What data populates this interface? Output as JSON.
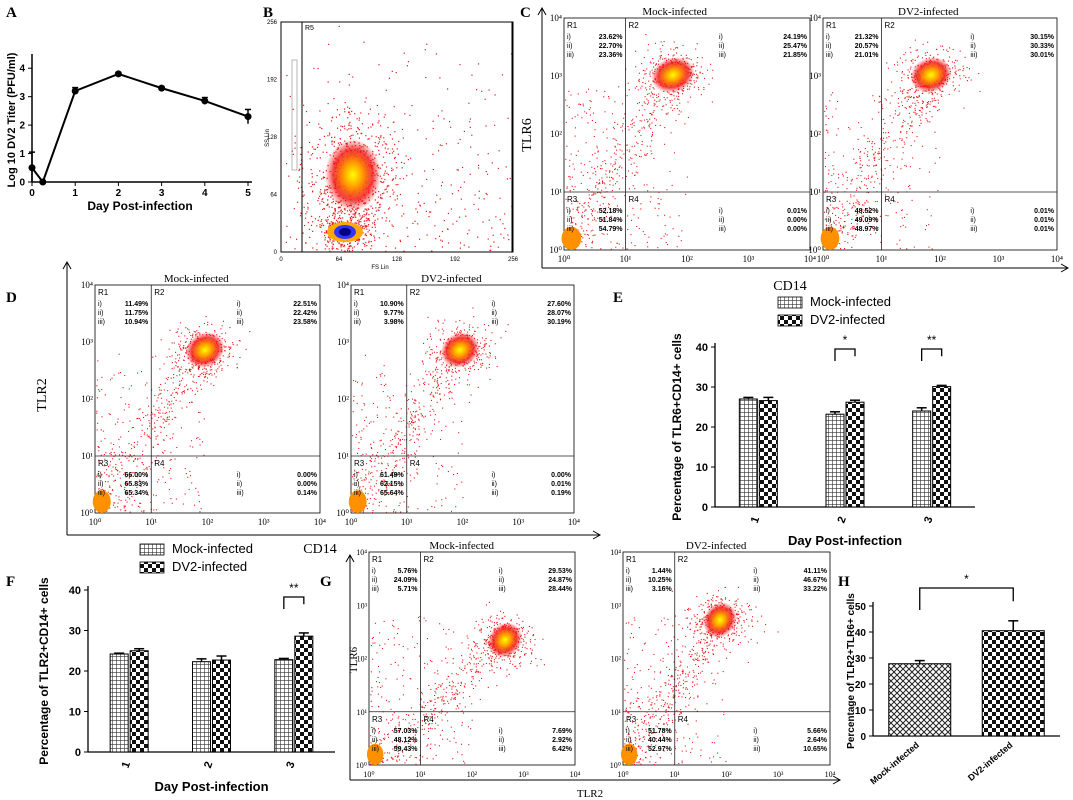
{
  "chart_data": [
    {
      "panel": "A",
      "type": "line",
      "xlabel": "Day Post-infection",
      "ylabel": "Log 10 DV2 Titer (PFU/ml)",
      "x": [
        0,
        0.25,
        1,
        2,
        3,
        4,
        5
      ],
      "y": [
        0.5,
        0.0,
        3.2,
        3.8,
        3.3,
        2.85,
        2.3
      ],
      "err": [
        0.55,
        0.05,
        0.12,
        0.05,
        0.05,
        0.12,
        0.25
      ],
      "xticks": [
        "0",
        "1",
        "2",
        "3",
        "4",
        "5"
      ],
      "yticks": [
        "0",
        "1",
        "2",
        "3",
        "4"
      ],
      "xlim": [
        0,
        5
      ],
      "ylim": [
        0,
        4.5
      ]
    },
    {
      "panel": "B",
      "type": "scatter",
      "xlabel": "FS Lin",
      "ylabel": "SS Lin",
      "gate": "R5",
      "xticks": [
        "0",
        "64",
        "128",
        "192",
        "256"
      ],
      "yticks": [
        "0",
        "64",
        "128",
        "192",
        "256"
      ]
    },
    {
      "panel": "C",
      "type": "scatter",
      "xlabel": "CD14",
      "ylabel": "TLR6",
      "ticks": [
        "10⁰",
        "10¹",
        "10²",
        "10³",
        "10⁴"
      ],
      "plots": [
        {
          "title": "Mock-infected",
          "quadrants": {
            "R1": [
              "23.62%",
              "22.70%",
              "23.36%"
            ],
            "R2": [
              "24.19%",
              "25.47%",
              "21.85%"
            ],
            "R3": [
              "52.18%",
              "51.84%",
              "54.79%"
            ],
            "R4": [
              "0.01%",
              "0.00%",
              "0.00%"
            ]
          }
        },
        {
          "title": "DV2-infected",
          "quadrants": {
            "R1": [
              "21.32%",
              "20.57%",
              "21.01%"
            ],
            "R2": [
              "30.15%",
              "30.33%",
              "30.01%"
            ],
            "R3": [
              "48.52%",
              "49.09%",
              "48.97%"
            ],
            "R4": [
              "0.01%",
              "0.01%",
              "0.01%"
            ]
          }
        }
      ]
    },
    {
      "panel": "D",
      "type": "scatter",
      "xlabel": "CD14",
      "ylabel": "TLR2",
      "ticks": [
        "10⁰",
        "10¹",
        "10²",
        "10³",
        "10⁴"
      ],
      "plots": [
        {
          "title": "Mock-infected",
          "quadrants": {
            "R1": [
              "11.49%",
              "11.75%",
              "10.94%"
            ],
            "R2": [
              "22.51%",
              "22.42%",
              "23.58%"
            ],
            "R3": [
              "66.00%",
              "65.83%",
              "65.34%"
            ],
            "R4": [
              "0.00%",
              "0.00%",
              "0.14%"
            ]
          }
        },
        {
          "title": "DV2-infected",
          "quadrants": {
            "R1": [
              "10.90%",
              "9.77%",
              "3.98%"
            ],
            "R2": [
              "27.60%",
              "28.07%",
              "30.19%"
            ],
            "R3": [
              "61.49%",
              "62.15%",
              "65.64%"
            ],
            "R4": [
              "0.00%",
              "0.01%",
              "0.19%"
            ]
          }
        }
      ]
    },
    {
      "panel": "E",
      "type": "bar",
      "categories": [
        "1",
        "2",
        "3"
      ],
      "series": [
        {
          "name": "Mock-infected",
          "values": [
            27.0,
            23.2,
            24.0
          ],
          "err": [
            0.4,
            0.6,
            0.8
          ]
        },
        {
          "name": "DV2-infected",
          "values": [
            26.6,
            26.2,
            30.1
          ],
          "err": [
            0.8,
            0.5,
            0.3
          ]
        }
      ],
      "xlabel": "Day Post-infection",
      "ylabel": "Percentage of TLR6+CD14+ cells",
      "ylim": [
        0,
        40
      ],
      "yticks": [
        "0",
        "10",
        "20",
        "30",
        "40"
      ],
      "significance": [
        {
          "category": "2",
          "label": "*"
        },
        {
          "category": "3",
          "label": "**"
        }
      ]
    },
    {
      "panel": "F",
      "type": "bar",
      "categories": [
        "1",
        "2",
        "3"
      ],
      "series": [
        {
          "name": "Mock-infected",
          "values": [
            24.2,
            22.3,
            22.8
          ],
          "err": [
            0.2,
            0.7,
            0.3
          ]
        },
        {
          "name": "DV2-infected",
          "values": [
            25.0,
            22.7,
            28.6
          ],
          "err": [
            0.5,
            1.0,
            0.8
          ]
        }
      ],
      "xlabel": "Day Post-infection",
      "ylabel": "Percentage of TLR2+CD14+ cells",
      "ylim": [
        0,
        40
      ],
      "yticks": [
        "0",
        "10",
        "20",
        "30",
        "40"
      ],
      "significance": [
        {
          "category": "3",
          "label": "**"
        }
      ]
    },
    {
      "panel": "G",
      "type": "scatter",
      "xlabel": "TLR2",
      "ylabel": "TLR6",
      "ticks": [
        "10⁰",
        "10¹",
        "10²",
        "10³",
        "10⁴"
      ],
      "plots": [
        {
          "title": "Mock-infected",
          "quadrants": {
            "R1": [
              "5.76%",
              "24.09%",
              "5.71%"
            ],
            "R2": [
              "29.53%",
              "24.87%",
              "28.44%"
            ],
            "R3": [
              "57.03%",
              "48.12%",
              "59.43%"
            ],
            "R4": [
              "7.69%",
              "2.92%",
              "6.42%"
            ]
          }
        },
        {
          "title": "DV2-infected",
          "quadrants": {
            "R1": [
              "1.44%",
              "10.25%",
              "3.16%"
            ],
            "R2": [
              "41.11%",
              "46.67%",
              "33.22%"
            ],
            "R3": [
              "51.78%",
              "40.44%",
              "52.97%"
            ],
            "R4": [
              "5.66%",
              "2.64%",
              "10.65%"
            ]
          }
        }
      ]
    },
    {
      "panel": "H",
      "type": "bar",
      "categories": [
        "Mock-infected",
        "DV2-infected"
      ],
      "values": [
        27.8,
        40.5
      ],
      "err": [
        1.2,
        3.8
      ],
      "ylabel": "Percentage of TLR2+TLR6+ cells",
      "ylim": [
        0,
        50
      ],
      "yticks": [
        "0",
        "10",
        "20",
        "30",
        "40",
        "50"
      ],
      "significance": [
        {
          "label": "*"
        }
      ]
    }
  ],
  "row_labels": [
    "i)",
    "ii)",
    "iii)"
  ]
}
